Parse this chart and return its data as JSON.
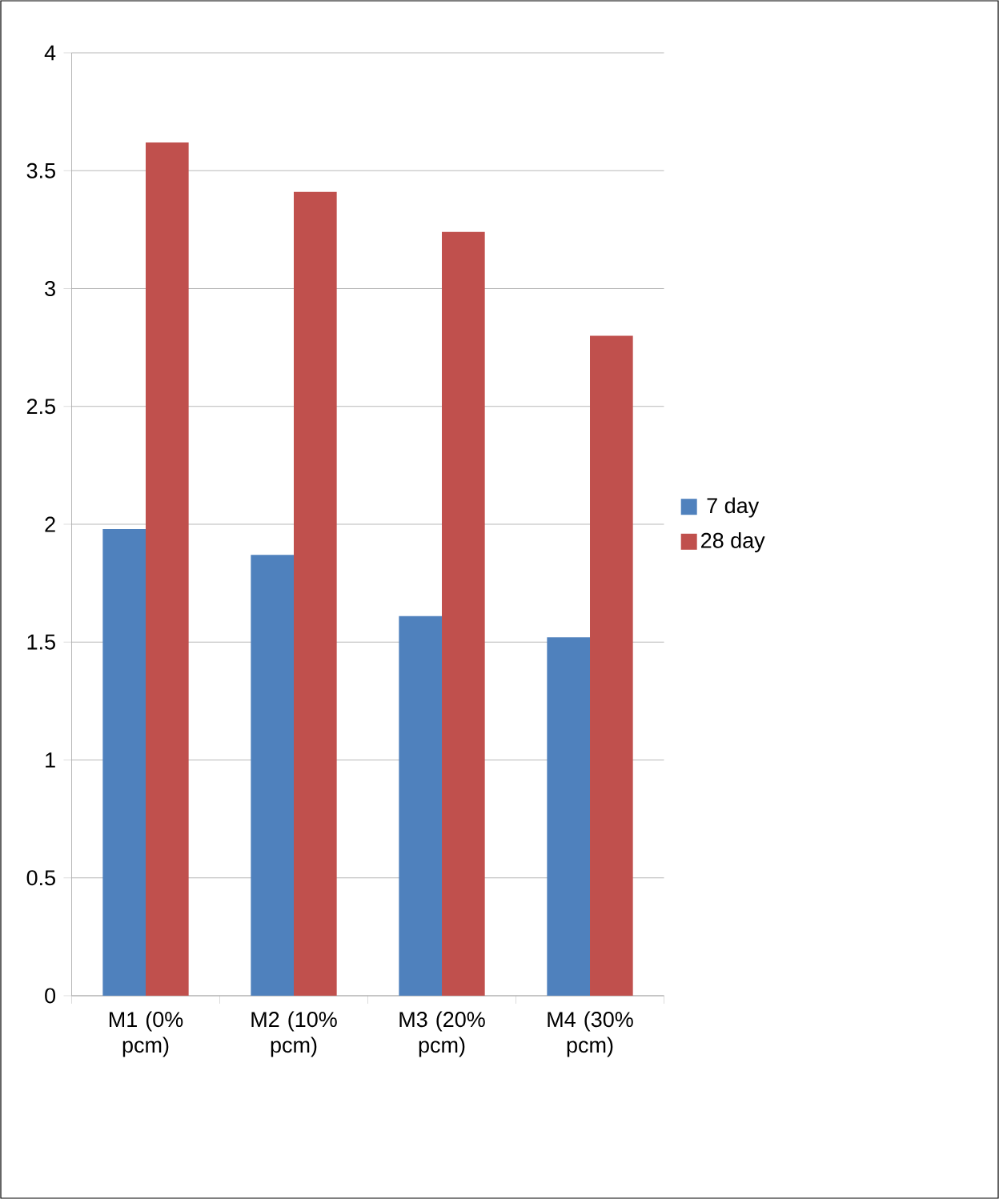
{
  "chart_data": {
    "type": "bar",
    "categories": [
      "M1 (0% pcm)",
      "M2 (10% pcm)",
      "M3 (20% pcm)",
      "M4 (30% pcm)"
    ],
    "series": [
      {
        "name": "7 day",
        "color": "#4f81bd",
        "values": [
          1.98,
          1.87,
          1.61,
          1.52
        ]
      },
      {
        "name": "28 day",
        "color": "#c0504d",
        "values": [
          3.62,
          3.41,
          3.24,
          2.8
        ]
      }
    ],
    "ylim": [
      0,
      4
    ],
    "yticks": [
      0,
      0.5,
      1,
      1.5,
      2,
      2.5,
      3,
      3.5,
      4
    ],
    "grid": "y",
    "legend": "right"
  }
}
